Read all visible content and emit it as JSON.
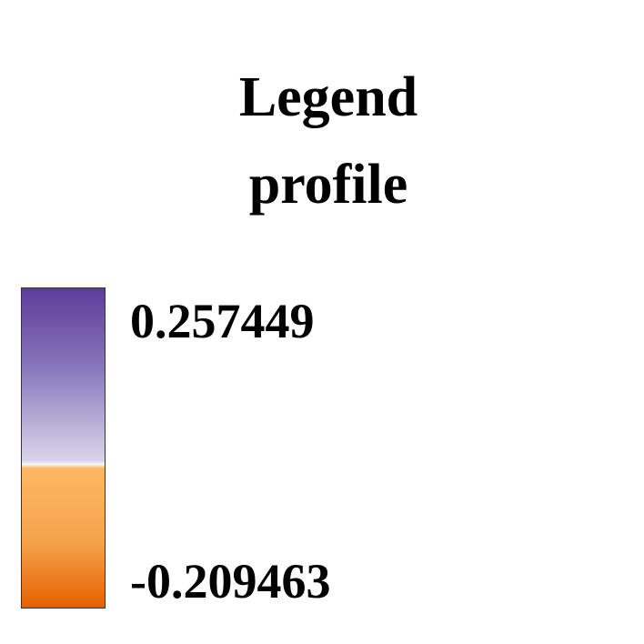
{
  "chart_data": {
    "type": "heatmap",
    "title": "Legend",
    "subtitle": "profile",
    "colorbar": {
      "max": 0.257449,
      "min": -0.209463,
      "max_label": "0.257449",
      "min_label": "-0.209463",
      "midpoint": 0,
      "colors": {
        "max": "#5e3c99",
        "near_zero_positive": "#d8d4ea",
        "zero": "#f7f7f7",
        "near_zero_negative": "#fdb863",
        "min": "#e66101"
      }
    }
  }
}
